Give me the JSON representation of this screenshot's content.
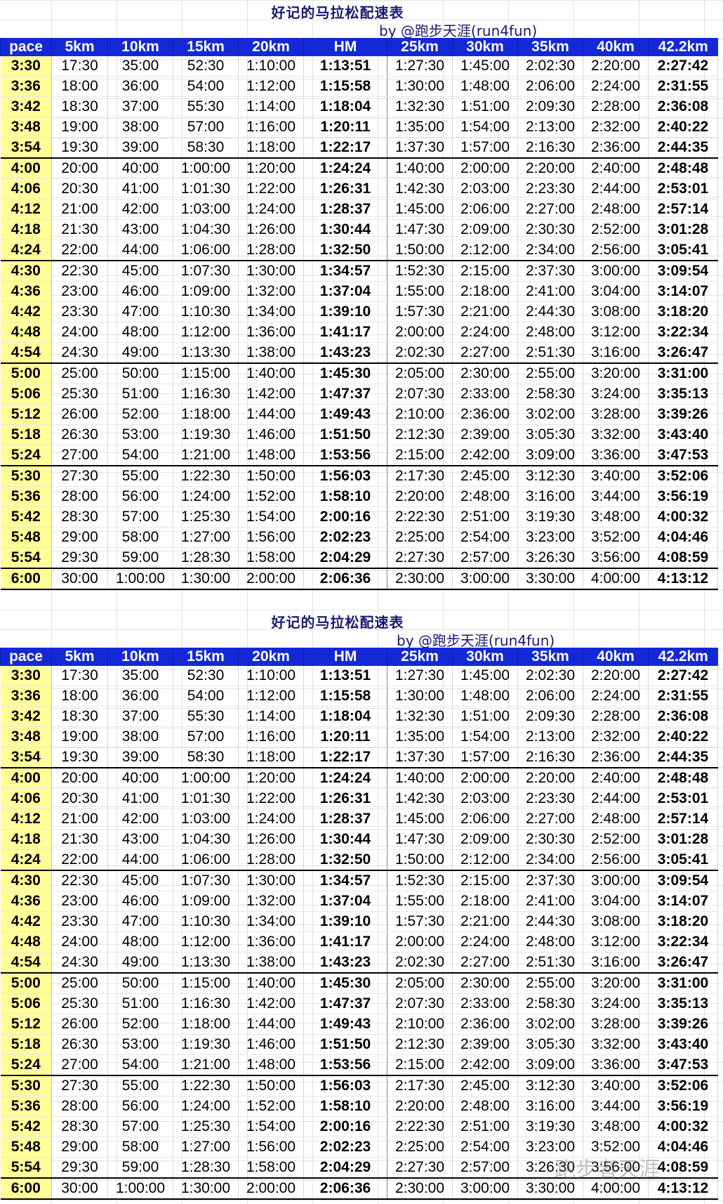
{
  "title": "好记的马拉松配速表",
  "byline": "by @跑步天涯(run4fun)",
  "headers": [
    "pace",
    "5km",
    "10km",
    "15km",
    "20km",
    "HM",
    "25km",
    "30km",
    "35km",
    "40km",
    "42.2km"
  ],
  "rows": [
    [
      "3:30",
      "17:30",
      "35:00",
      "52:30",
      "1:10:00",
      "1:13:51",
      "1:27:30",
      "1:45:00",
      "2:02:30",
      "2:20:00",
      "2:27:42"
    ],
    [
      "3:36",
      "18:00",
      "36:00",
      "54:00",
      "1:12:00",
      "1:15:58",
      "1:30:00",
      "1:48:00",
      "2:06:00",
      "2:24:00",
      "2:31:55"
    ],
    [
      "3:42",
      "18:30",
      "37:00",
      "55:30",
      "1:14:00",
      "1:18:04",
      "1:32:30",
      "1:51:00",
      "2:09:30",
      "2:28:00",
      "2:36:08"
    ],
    [
      "3:48",
      "19:00",
      "38:00",
      "57:00",
      "1:16:00",
      "1:20:11",
      "1:35:00",
      "1:54:00",
      "2:13:00",
      "2:32:00",
      "2:40:22"
    ],
    [
      "3:54",
      "19:30",
      "39:00",
      "58:30",
      "1:18:00",
      "1:22:17",
      "1:37:30",
      "1:57:00",
      "2:16:30",
      "2:36:00",
      "2:44:35"
    ],
    [
      "4:00",
      "20:00",
      "40:00",
      "1:00:00",
      "1:20:00",
      "1:24:24",
      "1:40:00",
      "2:00:00",
      "2:20:00",
      "2:40:00",
      "2:48:48"
    ],
    [
      "4:06",
      "20:30",
      "41:00",
      "1:01:30",
      "1:22:00",
      "1:26:31",
      "1:42:30",
      "2:03:00",
      "2:23:30",
      "2:44:00",
      "2:53:01"
    ],
    [
      "4:12",
      "21:00",
      "42:00",
      "1:03:00",
      "1:24:00",
      "1:28:37",
      "1:45:00",
      "2:06:00",
      "2:27:00",
      "2:48:00",
      "2:57:14"
    ],
    [
      "4:18",
      "21:30",
      "43:00",
      "1:04:30",
      "1:26:00",
      "1:30:44",
      "1:47:30",
      "2:09:00",
      "2:30:30",
      "2:52:00",
      "3:01:28"
    ],
    [
      "4:24",
      "22:00",
      "44:00",
      "1:06:00",
      "1:28:00",
      "1:32:50",
      "1:50:00",
      "2:12:00",
      "2:34:00",
      "2:56:00",
      "3:05:41"
    ],
    [
      "4:30",
      "22:30",
      "45:00",
      "1:07:30",
      "1:30:00",
      "1:34:57",
      "1:52:30",
      "2:15:00",
      "2:37:30",
      "3:00:00",
      "3:09:54"
    ],
    [
      "4:36",
      "23:00",
      "46:00",
      "1:09:00",
      "1:32:00",
      "1:37:04",
      "1:55:00",
      "2:18:00",
      "2:41:00",
      "3:04:00",
      "3:14:07"
    ],
    [
      "4:42",
      "23:30",
      "47:00",
      "1:10:30",
      "1:34:00",
      "1:39:10",
      "1:57:30",
      "2:21:00",
      "2:44:30",
      "3:08:00",
      "3:18:20"
    ],
    [
      "4:48",
      "24:00",
      "48:00",
      "1:12:00",
      "1:36:00",
      "1:41:17",
      "2:00:00",
      "2:24:00",
      "2:48:00",
      "3:12:00",
      "3:22:34"
    ],
    [
      "4:54",
      "24:30",
      "49:00",
      "1:13:30",
      "1:38:00",
      "1:43:23",
      "2:02:30",
      "2:27:00",
      "2:51:30",
      "3:16:00",
      "3:26:47"
    ],
    [
      "5:00",
      "25:00",
      "50:00",
      "1:15:00",
      "1:40:00",
      "1:45:30",
      "2:05:00",
      "2:30:00",
      "2:55:00",
      "3:20:00",
      "3:31:00"
    ],
    [
      "5:06",
      "25:30",
      "51:00",
      "1:16:30",
      "1:42:00",
      "1:47:37",
      "2:07:30",
      "2:33:00",
      "2:58:30",
      "3:24:00",
      "3:35:13"
    ],
    [
      "5:12",
      "26:00",
      "52:00",
      "1:18:00",
      "1:44:00",
      "1:49:43",
      "2:10:00",
      "2:36:00",
      "3:02:00",
      "3:28:00",
      "3:39:26"
    ],
    [
      "5:18",
      "26:30",
      "53:00",
      "1:19:30",
      "1:46:00",
      "1:51:50",
      "2:12:30",
      "2:39:00",
      "3:05:30",
      "3:32:00",
      "3:43:40"
    ],
    [
      "5:24",
      "27:00",
      "54:00",
      "1:21:00",
      "1:48:00",
      "1:53:56",
      "2:15:00",
      "2:42:00",
      "3:09:00",
      "3:36:00",
      "3:47:53"
    ],
    [
      "5:30",
      "27:30",
      "55:00",
      "1:22:30",
      "1:50:00",
      "1:56:03",
      "2:17:30",
      "2:45:00",
      "3:12:30",
      "3:40:00",
      "3:52:06"
    ],
    [
      "5:36",
      "28:00",
      "56:00",
      "1:24:00",
      "1:52:00",
      "1:58:10",
      "2:20:00",
      "2:48:00",
      "3:16:00",
      "3:44:00",
      "3:56:19"
    ],
    [
      "5:42",
      "28:30",
      "57:00",
      "1:25:30",
      "1:54:00",
      "2:00:16",
      "2:22:30",
      "2:51:00",
      "3:19:30",
      "3:48:00",
      "4:00:32"
    ],
    [
      "5:48",
      "29:00",
      "58:00",
      "1:27:00",
      "1:56:00",
      "2:02:23",
      "2:25:00",
      "2:54:00",
      "3:23:00",
      "3:52:00",
      "4:04:46"
    ],
    [
      "5:54",
      "29:30",
      "59:00",
      "1:28:30",
      "1:58:00",
      "2:04:29",
      "2:27:30",
      "2:57:00",
      "3:26:30",
      "3:56:00",
      "4:08:59"
    ],
    [
      "6:00",
      "30:00",
      "1:00:00",
      "1:30:00",
      "2:00:00",
      "2:06:36",
      "2:30:00",
      "3:00:00",
      "3:30:00",
      "4:00:00",
      "4:13:12"
    ]
  ],
  "watermark": "跑步者天涯"
}
